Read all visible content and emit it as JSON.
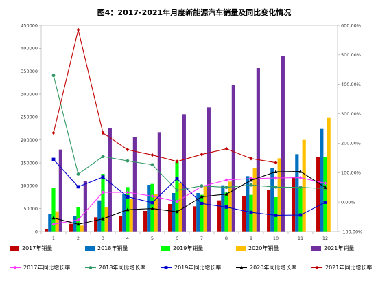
{
  "title": "图4：2017-2021年月度新能源汽车销量及同比变化情况",
  "chart_data": {
    "type": "bar",
    "title": "图4：2017-2021年月度新能源汽车销量及同比变化情况",
    "categories": [
      "1",
      "2",
      "3",
      "4",
      "5",
      "6",
      "7",
      "8",
      "9",
      "10",
      "11",
      "12"
    ],
    "y_left": {
      "ylim": [
        0,
        450000
      ],
      "ticks": [
        0,
        50000,
        100000,
        150000,
        200000,
        250000,
        300000,
        350000,
        400000,
        450000
      ]
    },
    "y_right": {
      "ylim": [
        -100,
        600
      ],
      "ticks": [
        -100,
        0,
        100,
        200,
        300,
        400,
        500,
        600
      ],
      "tick_labels": [
        "-100.00%",
        "0.00%",
        "100.00%",
        "200.00%",
        "300.00%",
        "400.00%",
        "500.00%",
        "600.00%"
      ]
    },
    "bar_series": [
      {
        "name": "2017年销量",
        "color": "#c00000",
        "values": [
          6000,
          17000,
          31000,
          33000,
          45000,
          60000,
          55000,
          68000,
          78000,
          91000,
          119000,
          163000
        ]
      },
      {
        "name": "2018年销量",
        "color": "#0070c0",
        "values": [
          38000,
          33000,
          68000,
          82000,
          102000,
          84000,
          84000,
          101000,
          121000,
          138000,
          169000,
          224000
        ]
      },
      {
        "name": "2019年销量",
        "color": "#00ff00",
        "values": [
          96000,
          53000,
          126000,
          97000,
          104000,
          152000,
          80000,
          85000,
          80000,
          75000,
          95000,
          163000
        ]
      },
      {
        "name": "2020年销量",
        "color": "#ffc000",
        "values": [
          44000,
          13000,
          53000,
          72000,
          82000,
          105000,
          98000,
          109000,
          138000,
          160000,
          200000,
          248000
        ]
      },
      {
        "name": "2021年销量",
        "color": "#7030a0",
        "values": [
          179000,
          110000,
          226000,
          206000,
          217000,
          256000,
          271000,
          321000,
          357000,
          383000,
          null,
          null
        ]
      }
    ],
    "line_series": [
      {
        "name": "2017年同比增长率",
        "color": "#ff33ff",
        "marker": "diamond",
        "values": [
          -75,
          -60,
          33,
          33,
          20,
          2,
          53,
          75,
          80,
          82,
          83,
          64
        ]
      },
      {
        "name": "2018年同比增长率",
        "color": "#339966",
        "marker": "circle",
        "values": [
          430,
          95,
          155,
          140,
          127,
          40,
          55,
          50,
          58,
          51,
          50,
          46
        ]
      },
      {
        "name": "2019年同比增长率",
        "color": "#0000cc",
        "marker": "square",
        "values": [
          145,
          52,
          85,
          18,
          -2,
          80,
          -5,
          -17,
          -35,
          -45,
          -44,
          -1
        ]
      },
      {
        "name": "2020年同比增长率",
        "color": "#000000",
        "marker": "triangle",
        "values": [
          -54,
          -75,
          -57,
          -26,
          -22,
          -33,
          18,
          27,
          74,
          103,
          104,
          50
        ]
      },
      {
        "name": "2021年同比增长率",
        "color": "#c00000",
        "marker": "diamond",
        "values": [
          235,
          585,
          235,
          178,
          160,
          138,
          162,
          181,
          148,
          134,
          null,
          null
        ]
      }
    ]
  }
}
